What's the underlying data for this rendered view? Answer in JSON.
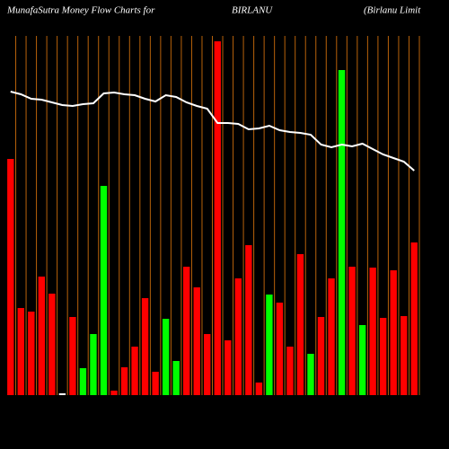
{
  "chart_data": {
    "type": "bar",
    "title": "MunafaSutra  Money Flow  Charts for",
    "symbol": "BIRLANU",
    "company": "(Birlanu  Limit",
    "categories": [
      null,
      null,
      null,
      null,
      null,
      null,
      null,
      null,
      null,
      null,
      null,
      null,
      null,
      null,
      null,
      null,
      null,
      null,
      null,
      null,
      null,
      null,
      null,
      null,
      null,
      null,
      null,
      null,
      null,
      null,
      null,
      null,
      null,
      null,
      null,
      null,
      null,
      null,
      null,
      null
    ],
    "values": [
      263,
      97,
      93,
      132,
      113,
      2,
      87,
      30,
      68,
      233,
      5,
      31,
      54,
      108,
      26,
      85,
      38,
      143,
      120,
      68,
      394,
      61,
      130,
      167,
      14,
      112,
      103,
      54,
      157,
      46,
      87,
      130,
      362,
      143,
      78,
      142,
      86,
      139,
      88,
      170
    ],
    "colors": [
      "#ff0000",
      "#ff0000",
      "#ff0000",
      "#ff0000",
      "#ff0000",
      "#ffffff",
      "#ff0000",
      "#00ff00",
      "#00ff00",
      "#00ff00",
      "#ff0000",
      "#ff0000",
      "#ff0000",
      "#ff0000",
      "#ff0000",
      "#00ff00",
      "#00ff00",
      "#ff0000",
      "#ff0000",
      "#ff0000",
      "#ff0000",
      "#ff0000",
      "#ff0000",
      "#ff0000",
      "#ff0000",
      "#00ff00",
      "#ff0000",
      "#ff0000",
      "#ff0000",
      "#00ff00",
      "#ff0000",
      "#ff0000",
      "#00ff00",
      "#ff0000",
      "#00ff00",
      "#ff0000",
      "#ff0000",
      "#ff0000",
      "#ff0000",
      "#ff0000"
    ],
    "line": {
      "color": "#ffffff",
      "values": [
        338,
        335,
        330,
        329,
        326,
        323,
        322,
        324,
        325,
        336,
        337,
        335,
        334,
        330,
        327,
        334,
        332,
        326,
        322,
        319,
        303,
        303,
        302,
        296,
        297,
        300,
        295,
        293,
        292,
        290,
        279,
        276,
        279,
        277,
        280,
        274,
        268,
        264,
        260,
        250
      ]
    },
    "separator_color": "#b8620a",
    "ylim": [
      0,
      400
    ]
  }
}
